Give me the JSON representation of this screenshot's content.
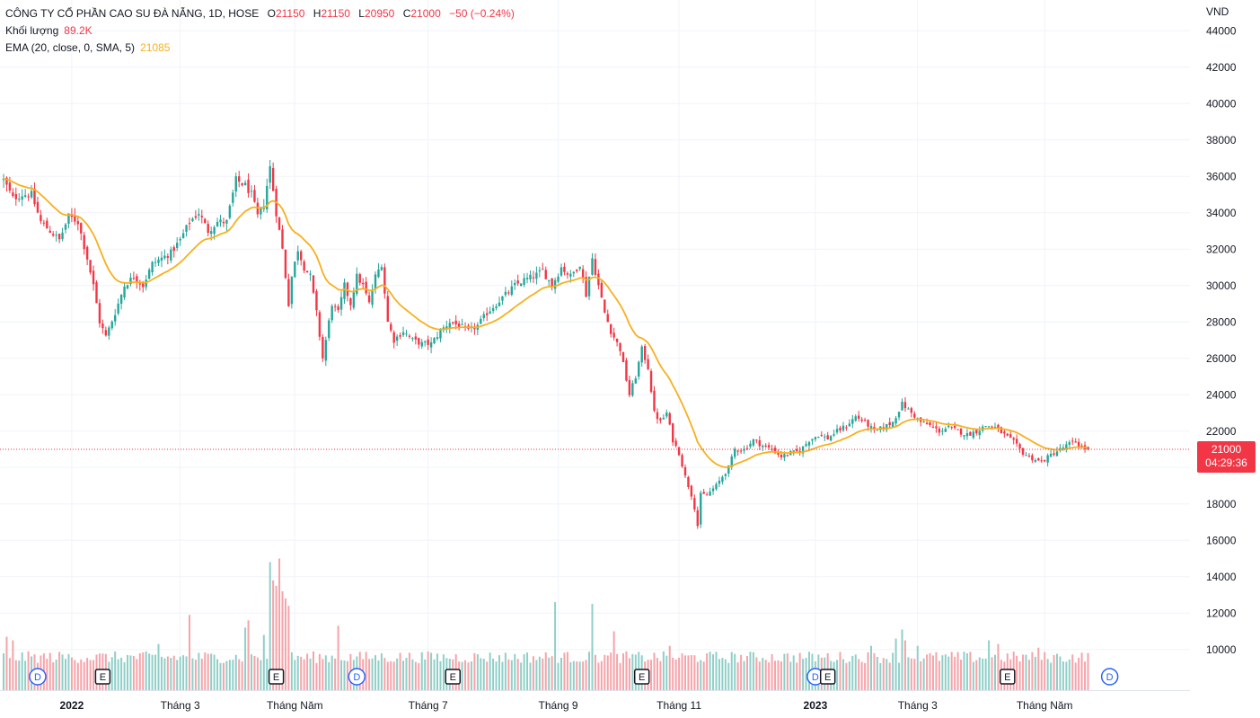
{
  "header": {
    "title": "CÔNG TY CỔ PHẦN CAO SU ĐÀ NẴNG, 1D, HOSE",
    "open_label": "O",
    "open": "21150",
    "high_label": "H",
    "high": "21150",
    "low_label": "L",
    "low": "20950",
    "close_label": "C",
    "close": "21000",
    "change": "−50 (−0.24%)",
    "volume_label": "Khối lượng",
    "volume": "89.2K",
    "ema_label": "EMA (20, close, 0, SMA, 5)",
    "ema_value": "21085"
  },
  "currency": "VND",
  "last_price": {
    "value": "21000",
    "countdown": "04:29:36"
  },
  "colors": {
    "up": "#26a69a",
    "down": "#f23645",
    "ema": "#f7b01e",
    "grid": "#f0f3fa",
    "text": "#131722",
    "marker_blue": "#2962ff",
    "marker_dark": "#131722"
  },
  "chart_data": {
    "type": "candlestick",
    "ylim": [
      8500,
      45000
    ],
    "y_ticks": [
      10000,
      12000,
      14000,
      16000,
      18000,
      20000,
      22000,
      24000,
      26000,
      28000,
      30000,
      32000,
      34000,
      36000,
      38000,
      40000,
      42000,
      44000
    ],
    "y_tick_labels": [
      "10000",
      "12000",
      "14000",
      "16000",
      "18000",
      "",
      "22000",
      "24000",
      "26000",
      "28000",
      "30000",
      "32000",
      "34000",
      "36000",
      "38000",
      "40000",
      "42000",
      "44000"
    ],
    "x_labels": [
      {
        "label": "2022",
        "bold": true,
        "index": 22
      },
      {
        "label": "Tháng 3",
        "index": 57
      },
      {
        "label": "Tháng Năm",
        "index": 94
      },
      {
        "label": "Tháng 7",
        "index": 137
      },
      {
        "label": "Tháng 9",
        "index": 179
      },
      {
        "label": "Tháng 11",
        "index": 218
      },
      {
        "label": "2023",
        "bold": true,
        "index": 262
      },
      {
        "label": "Tháng 3",
        "index": 295
      },
      {
        "label": "Tháng Năm",
        "index": 336
      }
    ],
    "anchors": [
      [
        0,
        35800
      ],
      [
        3,
        34800
      ],
      [
        6,
        35000
      ],
      [
        9,
        35000
      ],
      [
        12,
        33500
      ],
      [
        15,
        33000
      ],
      [
        18,
        32500
      ],
      [
        21,
        33800
      ],
      [
        24,
        33500
      ],
      [
        27,
        31500
      ],
      [
        29,
        30000
      ],
      [
        31,
        28000
      ],
      [
        33,
        27200
      ],
      [
        36,
        28500
      ],
      [
        39,
        30000
      ],
      [
        42,
        30500
      ],
      [
        45,
        30000
      ],
      [
        48,
        31200
      ],
      [
        51,
        31500
      ],
      [
        54,
        31800
      ],
      [
        57,
        32500
      ],
      [
        60,
        33500
      ],
      [
        63,
        34000
      ],
      [
        66,
        33000
      ],
      [
        69,
        33500
      ],
      [
        72,
        33500
      ],
      [
        75,
        35800
      ],
      [
        78,
        35500
      ],
      [
        80,
        35000
      ],
      [
        82,
        33800
      ],
      [
        84,
        34500
      ],
      [
        86,
        36500
      ],
      [
        88,
        34000
      ],
      [
        89,
        33000
      ],
      [
        90,
        32000
      ],
      [
        91,
        30500
      ],
      [
        92,
        29000
      ],
      [
        93,
        30500
      ],
      [
        95,
        32000
      ],
      [
        97,
        31000
      ],
      [
        99,
        30500
      ],
      [
        101,
        28500
      ],
      [
        103,
        26000
      ],
      [
        104,
        27000
      ],
      [
        106,
        29000
      ],
      [
        108,
        28500
      ],
      [
        110,
        30000
      ],
      [
        112,
        29000
      ],
      [
        114,
        30500
      ],
      [
        116,
        30000
      ],
      [
        118,
        29000
      ],
      [
        120,
        30500
      ],
      [
        122,
        31200
      ],
      [
        124,
        28000
      ],
      [
        126,
        27000
      ],
      [
        129,
        27500
      ],
      [
        132,
        27000
      ],
      [
        135,
        26800
      ],
      [
        138,
        26800
      ],
      [
        141,
        27500
      ],
      [
        144,
        28000
      ],
      [
        147,
        27800
      ],
      [
        150,
        27500
      ],
      [
        153,
        27800
      ],
      [
        156,
        28500
      ],
      [
        159,
        29000
      ],
      [
        162,
        29500
      ],
      [
        165,
        30000
      ],
      [
        168,
        30300
      ],
      [
        171,
        30500
      ],
      [
        174,
        30800
      ],
      [
        177,
        30000
      ],
      [
        180,
        31000
      ],
      [
        183,
        30500
      ],
      [
        186,
        31200
      ],
      [
        188,
        29500
      ],
      [
        190,
        31500
      ],
      [
        192,
        30000
      ],
      [
        194,
        28500
      ],
      [
        196,
        27500
      ],
      [
        199,
        26500
      ],
      [
        202,
        24000
      ],
      [
        204,
        25000
      ],
      [
        206,
        26500
      ],
      [
        208,
        25500
      ],
      [
        210,
        23000
      ],
      [
        212,
        22500
      ],
      [
        214,
        23000
      ],
      [
        216,
        21500
      ],
      [
        218,
        20800
      ],
      [
        220,
        19500
      ],
      [
        222,
        18500
      ],
      [
        223,
        17800
      ],
      [
        224,
        16800
      ],
      [
        225,
        18500
      ],
      [
        227,
        18500
      ],
      [
        230,
        19000
      ],
      [
        232,
        19500
      ],
      [
        234,
        20000
      ],
      [
        236,
        21000
      ],
      [
        239,
        21000
      ],
      [
        242,
        21500
      ],
      [
        245,
        21200
      ],
      [
        248,
        21000
      ],
      [
        251,
        20600
      ],
      [
        254,
        20800
      ],
      [
        257,
        20900
      ],
      [
        260,
        21500
      ],
      [
        263,
        21800
      ],
      [
        266,
        21600
      ],
      [
        269,
        22000
      ],
      [
        272,
        22300
      ],
      [
        275,
        22800
      ],
      [
        278,
        22500
      ],
      [
        281,
        22000
      ],
      [
        284,
        22200
      ],
      [
        287,
        22500
      ],
      [
        290,
        23500
      ],
      [
        293,
        23000
      ],
      [
        296,
        22500
      ],
      [
        299,
        22300
      ],
      [
        302,
        22000
      ],
      [
        305,
        22200
      ],
      [
        308,
        22000
      ],
      [
        311,
        21800
      ],
      [
        314,
        22000
      ],
      [
        317,
        22300
      ],
      [
        320,
        22200
      ],
      [
        323,
        21800
      ],
      [
        326,
        21400
      ],
      [
        329,
        20800
      ],
      [
        332,
        20500
      ],
      [
        335,
        20300
      ],
      [
        338,
        20700
      ],
      [
        341,
        21000
      ],
      [
        344,
        21300
      ],
      [
        346,
        21400
      ],
      [
        348,
        21100
      ],
      [
        350,
        21000
      ]
    ],
    "volume_spikes": [
      [
        1,
        1700
      ],
      [
        3,
        1500
      ],
      [
        50,
        1300
      ],
      [
        60,
        2900
      ],
      [
        78,
        2200
      ],
      [
        79,
        2600
      ],
      [
        84,
        1800
      ],
      [
        86,
        5800
      ],
      [
        87,
        4800
      ],
      [
        88,
        4500
      ],
      [
        89,
        6000
      ],
      [
        90,
        4200
      ],
      [
        91,
        3800
      ],
      [
        92,
        3400
      ],
      [
        108,
        2300
      ],
      [
        178,
        3600
      ],
      [
        190,
        3500
      ],
      [
        197,
        2000
      ],
      [
        215,
        1200
      ],
      [
        280,
        1200
      ],
      [
        288,
        1600
      ],
      [
        290,
        2100
      ],
      [
        291,
        1500
      ],
      [
        295,
        1200
      ],
      [
        318,
        1500
      ],
      [
        321,
        1300
      ],
      [
        334,
        1100
      ]
    ],
    "ema_label": "EMA (20, close, 0, SMA, 5)",
    "ema_last": 21085,
    "last_close": 21000,
    "event_markers": [
      {
        "label": "D",
        "index": 11,
        "kind": "dividend"
      },
      {
        "label": "E",
        "index": 32,
        "kind": "earnings"
      },
      {
        "label": "E",
        "index": 88,
        "kind": "earnings"
      },
      {
        "label": "D",
        "index": 114,
        "kind": "dividend"
      },
      {
        "label": "E",
        "index": 145,
        "kind": "earnings"
      },
      {
        "label": "E",
        "index": 206,
        "kind": "earnings"
      },
      {
        "label": "D",
        "index": 262,
        "kind": "dividend"
      },
      {
        "label": "E",
        "index": 266,
        "kind": "earnings"
      },
      {
        "label": "E",
        "index": 324,
        "kind": "earnings"
      },
      {
        "label": "D",
        "index": 357,
        "kind": "dividend"
      }
    ]
  }
}
